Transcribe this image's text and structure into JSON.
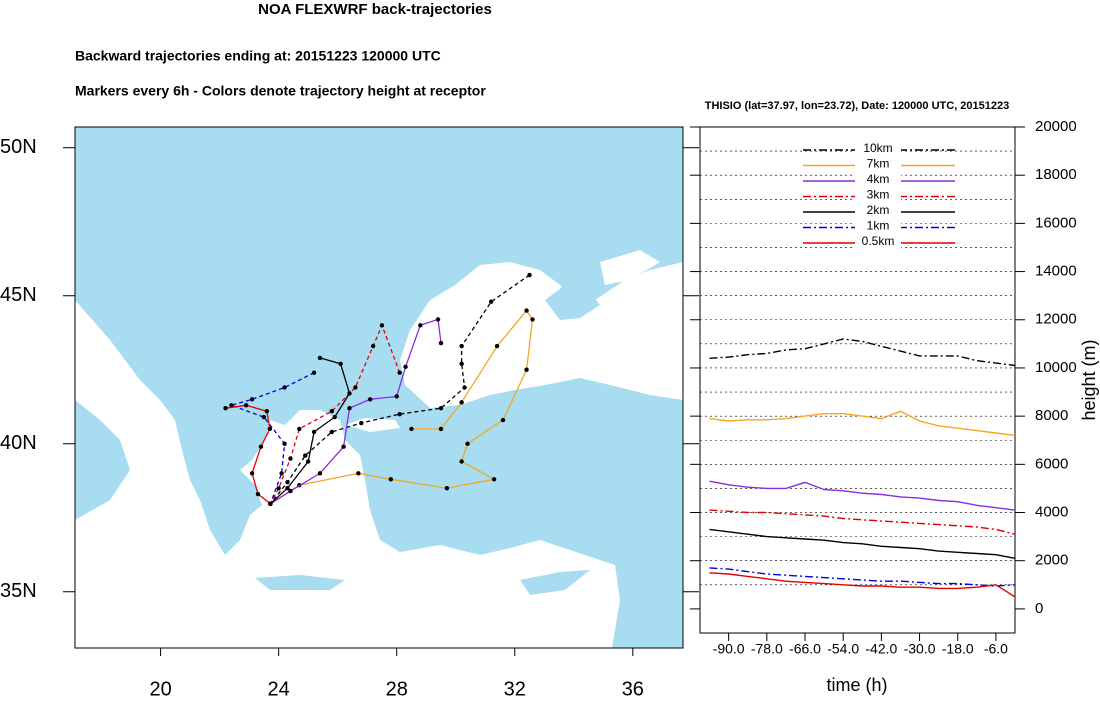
{
  "chart_data": [
    {
      "type": "trajectory-map",
      "title": "NOA FLEXWRF back-trajectories",
      "subtitle": [
        "Backward trajectories ending at: 20151223  120000 UTC",
        "Markers every 6h - Colors denote trajectory height at receptor"
      ],
      "xlim": [
        17.1,
        37.7
      ],
      "ylim": [
        33.1,
        50.7
      ],
      "xticks": [
        20,
        24,
        28,
        32,
        36
      ],
      "yticks": [
        {
          "value": 35,
          "label": "35N"
        },
        {
          "value": 40,
          "label": "40N"
        },
        {
          "value": 45,
          "label": "45N"
        },
        {
          "value": 50,
          "label": "50N"
        }
      ],
      "series": [
        {
          "color": "#000000",
          "dash": "dashed",
          "x": [
            32.5,
            31.2,
            30.2,
            30.2,
            30.3,
            29.5,
            28.1,
            26.8,
            25.8,
            24.9,
            24.3,
            23.72
          ],
          "values": [
            45.7,
            44.8,
            43.3,
            42.7,
            41.9,
            41.2,
            41.0,
            40.7,
            40.4,
            39.6,
            38.7,
            37.97
          ]
        },
        {
          "color": "#f5a623",
          "dash": "solid",
          "x": [
            28.5,
            29.5,
            30.2,
            31.4,
            32.4,
            32.6,
            32.4,
            31.6,
            30.4,
            30.2,
            31.3,
            29.7,
            27.8,
            26.7,
            24.7,
            23.72
          ],
          "values": [
            40.5,
            40.5,
            41.4,
            43.3,
            44.5,
            44.2,
            42.5,
            40.8,
            40.0,
            39.4,
            38.8,
            38.5,
            38.8,
            39.0,
            38.6,
            37.97
          ]
        },
        {
          "color": "#8a2be2",
          "dash": "solid",
          "x": [
            29.5,
            29.4,
            28.8,
            28.3,
            28.0,
            27.1,
            26.4,
            26.2,
            25.4,
            24.4,
            23.72
          ],
          "values": [
            43.4,
            44.2,
            44.0,
            42.6,
            41.6,
            41.5,
            41.2,
            39.9,
            39.0,
            38.4,
            37.97
          ]
        },
        {
          "color": "#e00000",
          "dash": "dashed",
          "x": [
            28.1,
            27.5,
            27.2,
            26.6,
            25.8,
            24.7,
            24.4,
            24.0,
            23.72
          ],
          "values": [
            42.4,
            44.0,
            43.3,
            41.9,
            41.1,
            40.5,
            39.5,
            38.5,
            37.97
          ]
        },
        {
          "color": "#000000",
          "dash": "solid",
          "x": [
            25.4,
            26.1,
            26.4,
            25.9,
            25.2,
            25.0,
            24.3,
            23.72
          ],
          "values": [
            42.9,
            42.7,
            41.7,
            40.9,
            40.4,
            39.4,
            38.5,
            37.97
          ]
        },
        {
          "color": "#0000e0",
          "dash": "dashed",
          "x": [
            25.2,
            24.2,
            23.1,
            22.4,
            23.5,
            24.2,
            24.1,
            23.72
          ],
          "values": [
            42.4,
            41.9,
            41.5,
            41.3,
            40.9,
            40.0,
            39.0,
            37.97
          ]
        },
        {
          "color": "#e00000",
          "dash": "solid",
          "x": [
            22.2,
            22.9,
            23.6,
            23.7,
            23.4,
            23.1,
            23.3,
            23.72
          ],
          "values": [
            41.2,
            41.3,
            41.1,
            40.5,
            39.9,
            39.0,
            38.3,
            37.97
          ]
        }
      ]
    },
    {
      "type": "line",
      "title": "THISIO (lat=37.97,  lon=23.72), Date: 120000 UTC, 20151223",
      "xlabel": "time (h)",
      "ylabel": "height (m)",
      "xlim": [
        -99,
        0
      ],
      "ylim": [
        -1000,
        20000
      ],
      "xticks": [
        {
          "value": -90,
          "label": "-90.0"
        },
        {
          "value": -78,
          "label": "-78.0"
        },
        {
          "value": -66,
          "label": "-66.0"
        },
        {
          "value": -54,
          "label": "-54.0"
        },
        {
          "value": -42,
          "label": "-42.0"
        },
        {
          "value": -30,
          "label": "-30.0"
        },
        {
          "value": -18,
          "label": "-18.0"
        },
        {
          "value": -6,
          "label": "-6.0"
        }
      ],
      "yticks": [
        0,
        2000,
        4000,
        6000,
        8000,
        10000,
        12000,
        14000,
        16000,
        18000,
        20000
      ],
      "ygridlines": [
        1000,
        2000,
        3000,
        4000,
        5000,
        6000,
        7000,
        8000,
        9000,
        10000,
        11000,
        12000,
        13000,
        14000,
        15000,
        16000,
        17000,
        18000,
        19000
      ],
      "x": [
        -96,
        -90,
        -84,
        -78,
        -72,
        -66,
        -60,
        -54,
        -48,
        -42,
        -36,
        -30,
        -24,
        -18,
        -12,
        -6,
        0
      ],
      "series": [
        {
          "name": "10km",
          "color": "#000000",
          "dash": "dashdot",
          "values": [
            10400,
            10450,
            10550,
            10600,
            10750,
            10800,
            11000,
            11200,
            11100,
            10900,
            10700,
            10500,
            10500,
            10500,
            10300,
            10200,
            10100
          ]
        },
        {
          "name": "7km",
          "color": "#f5a623",
          "dash": "solid",
          "values": [
            7900,
            7800,
            7850,
            7850,
            7900,
            8000,
            8100,
            8100,
            8000,
            7900,
            8200,
            7800,
            7600,
            7500,
            7400,
            7300,
            7200
          ]
        },
        {
          "name": "4km",
          "color": "#8a2be2",
          "dash": "solid",
          "values": [
            5300,
            5150,
            5050,
            5000,
            5000,
            5250,
            4950,
            4900,
            4800,
            4750,
            4650,
            4600,
            4500,
            4450,
            4300,
            4200,
            4100
          ]
        },
        {
          "name": "3km",
          "color": "#e00000",
          "dash": "dashdot",
          "values": [
            4100,
            4050,
            4000,
            4000,
            3950,
            3900,
            3850,
            3750,
            3700,
            3650,
            3600,
            3550,
            3500,
            3450,
            3400,
            3300,
            3100
          ]
        },
        {
          "name": "2km",
          "color": "#000000",
          "dash": "solid",
          "values": [
            3300,
            3200,
            3100,
            3000,
            2950,
            2900,
            2850,
            2750,
            2700,
            2600,
            2550,
            2500,
            2400,
            2350,
            2300,
            2250,
            2100
          ]
        },
        {
          "name": "1km",
          "color": "#0000e0",
          "dash": "dashdot",
          "values": [
            1700,
            1650,
            1550,
            1450,
            1400,
            1350,
            1300,
            1250,
            1200,
            1150,
            1150,
            1100,
            1050,
            1050,
            1000,
            950,
            1000
          ]
        },
        {
          "name": "0.5km",
          "color": "#e00000",
          "dash": "solid",
          "values": [
            1500,
            1450,
            1350,
            1250,
            1150,
            1100,
            1050,
            1000,
            950,
            950,
            900,
            900,
            850,
            850,
            900,
            1000,
            500
          ]
        }
      ]
    }
  ]
}
